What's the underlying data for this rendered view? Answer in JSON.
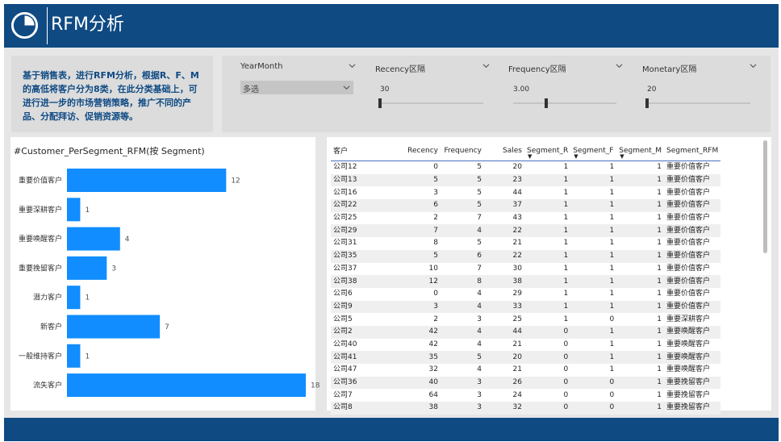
{
  "header": {
    "title": "RFM分析"
  },
  "description": "基于销售表，进行RFM分析，根据R、F、M的高低将客户分为8类，在此分类基础上，可进行进一步的市场营销策略，推广不同的产品、分配拜访、促销资源等。",
  "slicers": [
    {
      "title": "YearMonth",
      "value": "多选"
    },
    {
      "title": "Recency区隔",
      "value": "30",
      "level": 0.0
    },
    {
      "title": "Frequency区隔",
      "value": "3.00",
      "level": 0.33
    },
    {
      "title": "Monetary区隔",
      "value": "20",
      "level": 0.0
    }
  ],
  "colors": {
    "header": "#0f4a83",
    "bar": "#118dff",
    "background": "#e6e6e6"
  },
  "chart_data": {
    "type": "bar",
    "orientation": "horizontal",
    "title": "#Customer_PerSegment_RFM(按 Segment)",
    "categories": [
      "重要价值客户",
      "重要深耕客户",
      "重要唤醒客户",
      "重要挽留客户",
      "潜力客户",
      "新客户",
      "一般维持客户",
      "流失客户"
    ],
    "values": [
      12,
      1,
      4,
      3,
      1,
      7,
      1,
      18
    ],
    "xlim": [
      0,
      18
    ],
    "grid": false,
    "data_labels": true
  },
  "table": {
    "columns": [
      "客户",
      "Recency",
      "Frequency",
      "Sales",
      "Segment_R",
      "Segment_F",
      "Segment_M",
      "Segment_RFM"
    ],
    "rows": [
      [
        "公司12",
        "0",
        "5",
        "20",
        "1",
        "1",
        "1",
        "重要价值客户"
      ],
      [
        "公司13",
        "5",
        "5",
        "23",
        "1",
        "1",
        "1",
        "重要价值客户"
      ],
      [
        "公司16",
        "3",
        "5",
        "44",
        "1",
        "1",
        "1",
        "重要价值客户"
      ],
      [
        "公司22",
        "6",
        "5",
        "37",
        "1",
        "1",
        "1",
        "重要价值客户"
      ],
      [
        "公司25",
        "2",
        "7",
        "43",
        "1",
        "1",
        "1",
        "重要价值客户"
      ],
      [
        "公司29",
        "7",
        "4",
        "22",
        "1",
        "1",
        "1",
        "重要价值客户"
      ],
      [
        "公司31",
        "8",
        "5",
        "21",
        "1",
        "1",
        "1",
        "重要价值客户"
      ],
      [
        "公司35",
        "5",
        "6",
        "22",
        "1",
        "1",
        "1",
        "重要价值客户"
      ],
      [
        "公司37",
        "10",
        "7",
        "30",
        "1",
        "1",
        "1",
        "重要价值客户"
      ],
      [
        "公司38",
        "12",
        "8",
        "38",
        "1",
        "1",
        "1",
        "重要价值客户"
      ],
      [
        "公司6",
        "0",
        "4",
        "29",
        "1",
        "1",
        "1",
        "重要价值客户"
      ],
      [
        "公司9",
        "3",
        "4",
        "33",
        "1",
        "1",
        "1",
        "重要价值客户"
      ],
      [
        "公司5",
        "2",
        "3",
        "25",
        "1",
        "0",
        "1",
        "重要深耕客户"
      ],
      [
        "公司2",
        "42",
        "4",
        "44",
        "0",
        "1",
        "1",
        "重要唤醒客户"
      ],
      [
        "公司40",
        "42",
        "4",
        "21",
        "0",
        "1",
        "1",
        "重要唤醒客户"
      ],
      [
        "公司41",
        "35",
        "5",
        "20",
        "0",
        "1",
        "1",
        "重要唤醒客户"
      ],
      [
        "公司47",
        "32",
        "4",
        "21",
        "0",
        "1",
        "1",
        "重要唤醒客户"
      ],
      [
        "公司36",
        "40",
        "3",
        "26",
        "0",
        "0",
        "1",
        "重要挽留客户"
      ],
      [
        "公司7",
        "64",
        "3",
        "24",
        "0",
        "0",
        "1",
        "重要挽留客户"
      ],
      [
        "公司8",
        "38",
        "3",
        "32",
        "0",
        "0",
        "1",
        "重要挽留客户"
      ]
    ]
  }
}
